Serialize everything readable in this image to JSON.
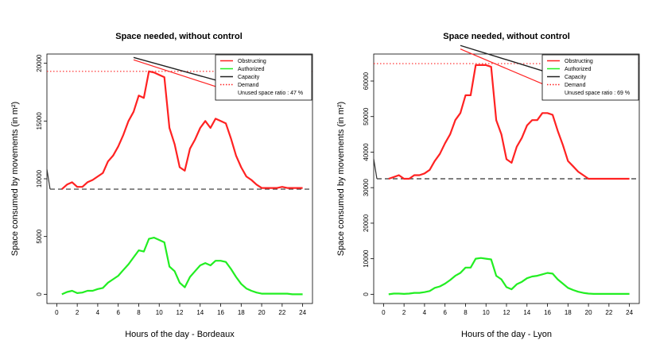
{
  "chart_data": [
    {
      "type": "line",
      "title": "Space needed, without control",
      "xlabel": "Hours of the day - Bordeaux",
      "ylabel": "Space consumed by movements (in m²)",
      "xlim": [
        0,
        24
      ],
      "ylim": [
        0,
        20000
      ],
      "xticks": [
        0,
        2,
        4,
        6,
        8,
        10,
        12,
        14,
        16,
        18,
        20,
        22,
        24
      ],
      "yticks": [
        0,
        5000,
        10000,
        15000,
        20000
      ],
      "grid": false,
      "legend_position": "top-right",
      "legend": [
        "Obstructing",
        "Authorized",
        "Capacity",
        "Demand",
        "Unused space ratio : 47 %"
      ],
      "colors": {
        "obstructing": "#ff2222",
        "authorized": "#22ee22",
        "capacity": "#222222",
        "demand": "#ff2222",
        "baseline": "#333333"
      },
      "series": [
        {
          "name": "Obstructing",
          "x": [
            0.5,
            1,
            1.5,
            2,
            2.5,
            3,
            3.5,
            4,
            4.5,
            5,
            5.5,
            6,
            6.5,
            7,
            7.5,
            8,
            8.5,
            9,
            9.5,
            10,
            10.5,
            11,
            11.5,
            12,
            12.5,
            13,
            13.5,
            14,
            14.5,
            15,
            15.5,
            16,
            16.5,
            17,
            17.5,
            18,
            18.5,
            19,
            19.5,
            20,
            20.5,
            21,
            21.5,
            22,
            22.5,
            23,
            23.5,
            24
          ],
          "y": [
            9100,
            9500,
            9700,
            9300,
            9300,
            9700,
            9900,
            10200,
            10500,
            11500,
            12000,
            12800,
            13800,
            15000,
            15800,
            17200,
            17000,
            19300,
            19200,
            19000,
            18800,
            14400,
            13000,
            11000,
            10700,
            12600,
            13400,
            14400,
            15000,
            14400,
            15200,
            15000,
            14800,
            13500,
            12000,
            11000,
            10200,
            9900,
            9500,
            9200,
            9200,
            9200,
            9200,
            9300,
            9200,
            9200,
            9200,
            9200
          ]
        },
        {
          "name": "Authorized",
          "x": [
            0.5,
            1,
            1.5,
            2,
            2.5,
            3,
            3.5,
            4,
            4.5,
            5,
            5.5,
            6,
            6.5,
            7,
            7.5,
            8,
            8.5,
            9,
            9.5,
            10,
            10.5,
            11,
            11.5,
            12,
            12.5,
            13,
            13.5,
            14,
            14.5,
            15,
            15.5,
            16,
            16.5,
            17,
            17.5,
            18,
            18.5,
            19,
            19.5,
            20,
            20.5,
            21,
            21.5,
            22,
            22.5,
            23,
            23.5,
            24
          ],
          "y": [
            0,
            200,
            300,
            100,
            150,
            300,
            300,
            450,
            550,
            1000,
            1300,
            1600,
            2100,
            2600,
            3200,
            3800,
            3700,
            4800,
            4900,
            4700,
            4500,
            2400,
            2000,
            1000,
            600,
            1500,
            2000,
            2500,
            2700,
            2500,
            2900,
            2900,
            2800,
            2200,
            1500,
            900,
            500,
            300,
            150,
            50,
            50,
            50,
            50,
            50,
            50,
            0,
            0,
            0
          ]
        },
        {
          "name": "Capacity",
          "x": [
            7.5,
            16.5
          ],
          "y": [
            20500,
            18300
          ]
        },
        {
          "name": "Demand",
          "x": [
            0,
            24
          ],
          "y": [
            19300,
            19300
          ]
        }
      ],
      "diagonal_line": {
        "x": [
          7.5,
          16.5
        ],
        "y": [
          20300,
          17700
        ]
      },
      "baseline": {
        "y": 9100
      }
    },
    {
      "type": "line",
      "title": "Space needed, without control",
      "xlabel": "Hours of the day - Lyon",
      "ylabel": "Space consumed by movements (in m²)",
      "xlim": [
        0,
        24
      ],
      "ylim": [
        0,
        65000
      ],
      "xticks": [
        0,
        2,
        4,
        6,
        8,
        10,
        12,
        14,
        16,
        18,
        20,
        22,
        24
      ],
      "yticks": [
        0,
        10000,
        20000,
        30000,
        40000,
        50000,
        60000
      ],
      "grid": false,
      "legend_position": "top-right",
      "legend": [
        "Obstructing",
        "Authorized",
        "Capacity",
        "Demand",
        "Unused space ratio : 69 %"
      ],
      "colors": {
        "obstructing": "#ff2222",
        "authorized": "#22ee22",
        "capacity": "#222222",
        "demand": "#ff2222",
        "baseline": "#333333"
      },
      "series": [
        {
          "name": "Obstructing",
          "x": [
            0.5,
            1,
            1.5,
            2,
            2.5,
            3,
            3.5,
            4,
            4.5,
            5,
            5.5,
            6,
            6.5,
            7,
            7.5,
            8,
            8.5,
            9,
            9.5,
            10,
            10.5,
            11,
            11.5,
            12,
            12.5,
            13,
            13.5,
            14,
            14.5,
            15,
            15.5,
            16,
            16.5,
            17,
            17.5,
            18,
            18.5,
            19,
            19.5,
            20,
            20.5,
            21,
            21.5,
            22,
            22.5,
            23,
            23.5,
            24
          ],
          "y": [
            32500,
            33000,
            33500,
            32500,
            32500,
            33500,
            33500,
            34000,
            35000,
            37500,
            39500,
            42500,
            45000,
            49000,
            51000,
            56000,
            56000,
            64500,
            64500,
            64500,
            64000,
            49000,
            45000,
            38000,
            37000,
            41500,
            44000,
            47500,
            49000,
            49000,
            51000,
            51000,
            50500,
            46000,
            42000,
            37500,
            36000,
            34500,
            33500,
            32500,
            32500,
            32500,
            32500,
            32500,
            32500,
            32500,
            32500,
            32500
          ]
        },
        {
          "name": "Authorized",
          "x": [
            0.5,
            1,
            1.5,
            2,
            2.5,
            3,
            3.5,
            4,
            4.5,
            5,
            5.5,
            6,
            6.5,
            7,
            7.5,
            8,
            8.5,
            9,
            9.5,
            10,
            10.5,
            11,
            11.5,
            12,
            12.5,
            13,
            13.5,
            14,
            14.5,
            15,
            15.5,
            16,
            16.5,
            17,
            17.5,
            18,
            18.5,
            19,
            19.5,
            20,
            20.5,
            21,
            21.5,
            22,
            22.5,
            23,
            23.5,
            24
          ],
          "y": [
            0,
            200,
            200,
            100,
            200,
            400,
            400,
            600,
            900,
            1800,
            2200,
            3000,
            4000,
            5200,
            6000,
            7500,
            7500,
            10000,
            10200,
            10000,
            9800,
            5200,
            4200,
            2000,
            1400,
            2800,
            3500,
            4500,
            5000,
            5200,
            5600,
            6000,
            5800,
            4200,
            3000,
            1800,
            1200,
            700,
            400,
            200,
            100,
            100,
            100,
            100,
            100,
            100,
            100,
            100
          ]
        },
        {
          "name": "Capacity",
          "x": [
            7.5,
            16.5
          ],
          "y": [
            70000,
            62000
          ]
        },
        {
          "name": "Demand",
          "x": [
            0,
            24
          ],
          "y": [
            64900,
            64900
          ]
        }
      ],
      "diagonal_line": {
        "x": [
          7.5,
          16.5
        ],
        "y": [
          69000,
          58000
        ]
      },
      "baseline": {
        "y": 32500
      }
    }
  ]
}
